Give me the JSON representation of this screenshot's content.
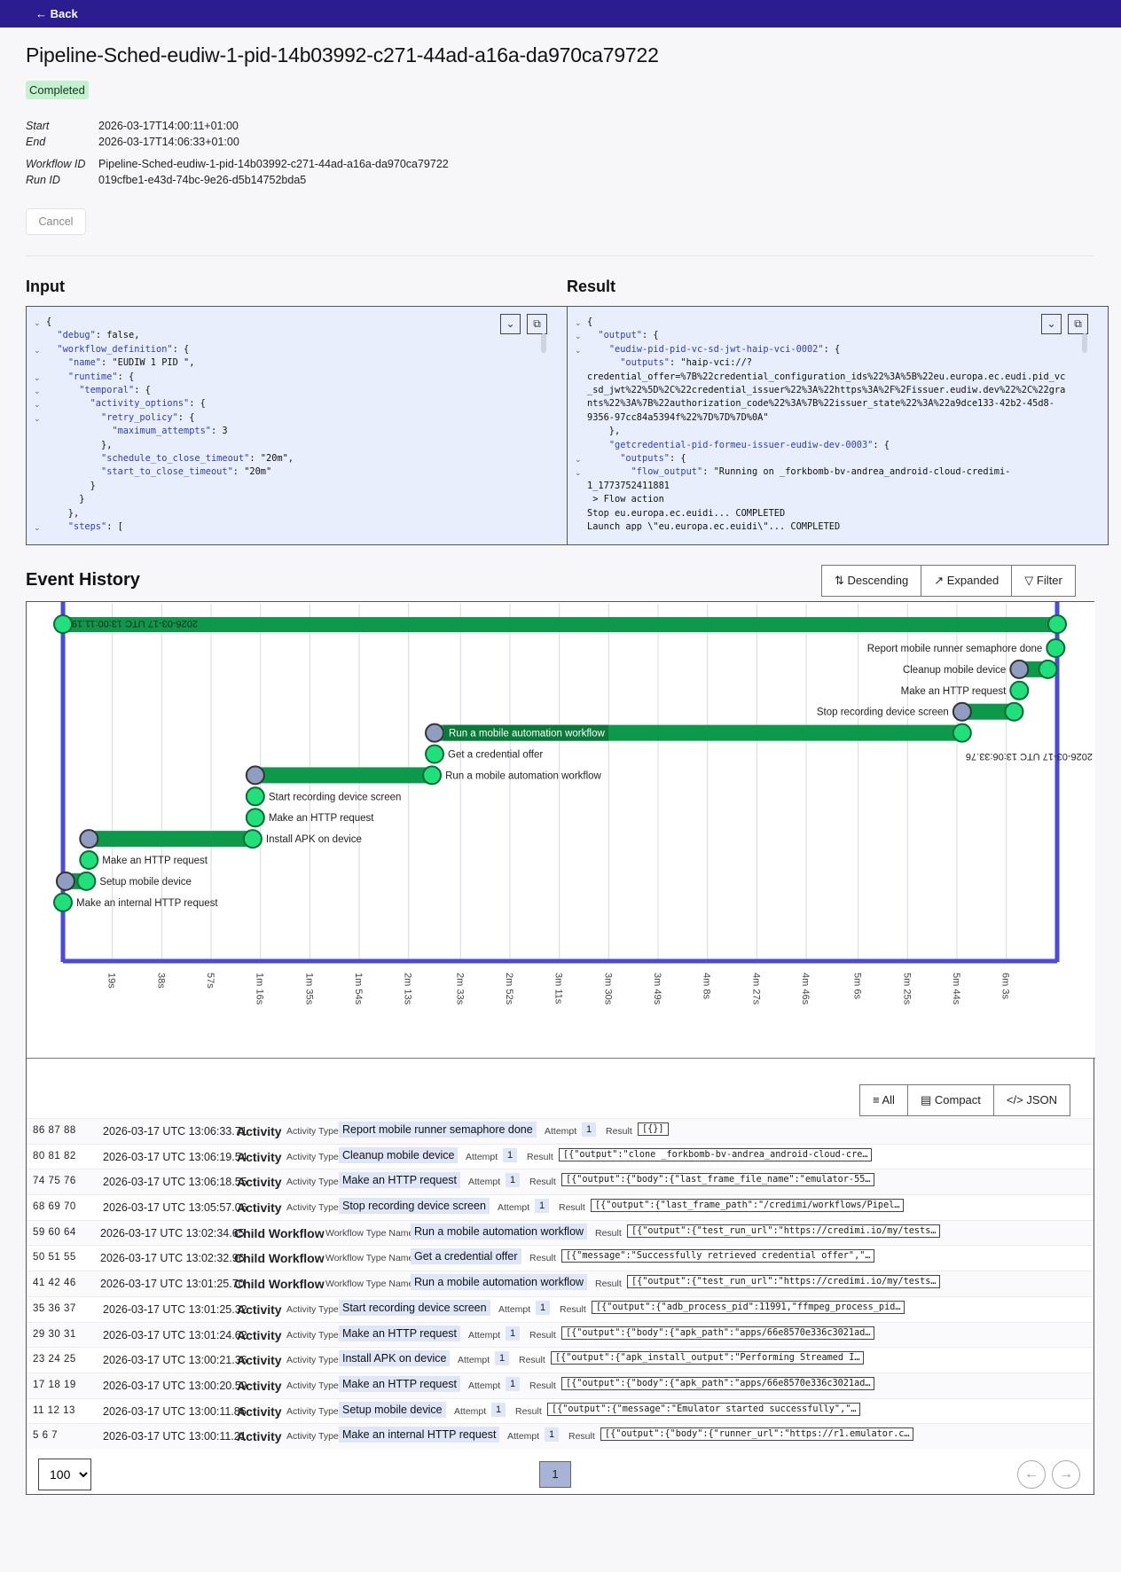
{
  "topbar": {
    "back_label": "Back"
  },
  "page": {
    "title": "Pipeline-Sched-eudiw-1-pid-14b03992-c271-44ad-a16a-da970ca79722",
    "status": "Completed",
    "start_label": "Start",
    "start_value": "2026-03-17T14:00:11+01:00",
    "end_label": "End",
    "end_value": "2026-03-17T14:06:33+01:00",
    "workflow_id_label": "Workflow ID",
    "workflow_id_value": "Pipeline-Sched-eudiw-1-pid-14b03992-c271-44ad-a16a-da970ca79722",
    "run_id_label": "Run ID",
    "run_id_value": "019cfbe1-e43d-74bc-9e26-d5b14752bda5",
    "cancel_label": "Cancel"
  },
  "input": {
    "heading": "Input",
    "lines": [
      "{",
      "  \"debug\": false,",
      "  \"workflow_definition\": {",
      "    \"name\": \"EUDIW 1 PID \",",
      "    \"runtime\": {",
      "      \"temporal\": {",
      "        \"activity_options\": {",
      "          \"retry_policy\": {",
      "            \"maximum_attempts\": 3",
      "          },",
      "          \"schedule_to_close_timeout\": \"20m\",",
      "          \"start_to_close_timeout\": \"20m\"",
      "        }",
      "      }",
      "    },",
      "    \"steps\": ["
    ]
  },
  "result": {
    "heading": "Result",
    "lines": [
      "{",
      "  \"output\": {",
      "    \"eudiw-pid-pid-vc-sd-jwt-haip-vci-0002\": {",
      "      \"outputs\": \"haip-vci://?",
      "credential_offer=%7B%22credential_configuration_ids%22%3A%5B%22eu.europa.ec.eudi.pid_vc",
      "_sd_jwt%22%5D%2C%22credential_issuer%22%3A%22https%3A%2F%2Fissuer.eudiw.dev%22%2C%22gra",
      "nts%22%3A%7B%22authorization_code%22%3A%7B%22issuer_state%22%3A%22a9dce133-42b2-45d8-",
      "9356-97cc84a5394f%22%7D%7D%7D%0A\"",
      "    },",
      "    \"getcredential-pid-formeu-issuer-eudiw-dev-0003\": {",
      "      \"outputs\": {",
      "        \"flow_output\": \"Running on _forkbomb-bv-andrea_android-cloud-credimi-",
      "1_1773752411881",
      " > Flow action",
      "Stop eu.europa.ec.euidi... COMPLETED",
      "Launch app \\\"eu.europa.ec.euidi\\\"... COMPLETED"
    ]
  },
  "event_history": {
    "heading": "Event History",
    "sort_label": "Descending",
    "expand_label": "Expanded",
    "filter_label": "Filter",
    "view_all": "All",
    "view_compact": "Compact",
    "view_json": "JSON"
  },
  "timeline": {
    "axis_ticks": [
      "19s",
      "38s",
      "57s",
      "1m 16s",
      "1m 35s",
      "1m 54s",
      "2m 13s",
      "2m 33s",
      "2m 52s",
      "3m 11s",
      "3m 30s",
      "3m 49s",
      "4m 8s",
      "4m 27s",
      "4m 46s",
      "5m 6s",
      "5m 25s",
      "5m 44s",
      "6m 3s"
    ],
    "start_stamp": "2026-03-17 UTC 13:00:11.19",
    "end_stamp": "2026-03-17 UTC 13:06:33.76",
    "bars": [
      {
        "label": "Report mobile runner semaphore done",
        "start_s": 382,
        "end_s": 382,
        "kind": "activity"
      },
      {
        "label": "Cleanup mobile device",
        "start_s": 368,
        "end_s": 379,
        "kind": "activity"
      },
      {
        "label": "Make an HTTP request",
        "start_s": 368,
        "end_s": 368,
        "kind": "activity"
      },
      {
        "label": "Stop recording device screen",
        "start_s": 346,
        "end_s": 366,
        "kind": "activity"
      },
      {
        "label": "Run a mobile automation workflow",
        "start_s": 143,
        "end_s": 346,
        "kind": "child"
      },
      {
        "label": "Get a credential offer",
        "start_s": 142,
        "end_s": 143,
        "kind": "child"
      },
      {
        "label": "Run a mobile automation workflow",
        "start_s": 74,
        "end_s": 142,
        "kind": "child"
      },
      {
        "label": "Start recording device screen",
        "start_s": 74,
        "end_s": 74,
        "kind": "activity"
      },
      {
        "label": "Make an HTTP request",
        "start_s": 74,
        "end_s": 74,
        "kind": "activity"
      },
      {
        "label": "Install APK on device",
        "start_s": 10,
        "end_s": 73,
        "kind": "activity"
      },
      {
        "label": "Make an HTTP request",
        "start_s": 10,
        "end_s": 10,
        "kind": "activity"
      },
      {
        "label": "Setup mobile device",
        "start_s": 1,
        "end_s": 9,
        "kind": "activity"
      },
      {
        "label": "Make an internal HTTP request",
        "start_s": 0,
        "end_s": 0,
        "kind": "activity"
      }
    ]
  },
  "events": [
    {
      "ids": "86 87 88",
      "time": "2026-03-17 UTC 13:06:33.71",
      "kind": "Activity",
      "type_label": "Activity Type",
      "type": "Report mobile runner semaphore done",
      "attempt_label": "Attempt",
      "attempt": "1",
      "result_label": "Result",
      "result": "[{}]"
    },
    {
      "ids": "80 81 82",
      "time": "2026-03-17 UTC 13:06:19.54",
      "kind": "Activity",
      "type_label": "Activity Type",
      "type": "Cleanup mobile device",
      "attempt_label": "Attempt",
      "attempt": "1",
      "result_label": "Result",
      "result": "[{\"output\":\"clone _forkbomb-bv-andrea_android-cloud-cre…"
    },
    {
      "ids": "74 75 76",
      "time": "2026-03-17 UTC 13:06:18.55",
      "kind": "Activity",
      "type_label": "Activity Type",
      "type": "Make an HTTP request",
      "attempt_label": "Attempt",
      "attempt": "1",
      "result_label": "Result",
      "result": "[{\"output\":{\"body\":{\"last_frame_file_name\":\"emulator-55…"
    },
    {
      "ids": "68 69 70",
      "time": "2026-03-17 UTC 13:05:57.06",
      "kind": "Activity",
      "type_label": "Activity Type",
      "type": "Stop recording device screen",
      "attempt_label": "Attempt",
      "attempt": "1",
      "result_label": "Result",
      "result": "[{\"output\":{\"last_frame_path\":\"/credimi/workflows/Pipel…"
    },
    {
      "ids": "59 60 64",
      "time": "2026-03-17 UTC 13:02:34.65",
      "kind": "Child Workflow",
      "type_label": "Workflow Type Name",
      "type": "Run a mobile automation workflow",
      "attempt_label": "",
      "attempt": "",
      "result_label": "Result",
      "result": "[{\"output\":{\"test_run_url\":\"https://credimi.io/my/tests…"
    },
    {
      "ids": "50 51 55",
      "time": "2026-03-17 UTC 13:02:32.96",
      "kind": "Child Workflow",
      "type_label": "Workflow Type Name",
      "type": "Get a credential offer",
      "attempt_label": "",
      "attempt": "",
      "result_label": "Result",
      "result": "[{\"message\":\"Successfully retrieved credential offer\",\"…"
    },
    {
      "ids": "41 42 46",
      "time": "2026-03-17 UTC 13:01:25.70",
      "kind": "Child Workflow",
      "type_label": "Workflow Type Name",
      "type": "Run a mobile automation workflow",
      "attempt_label": "",
      "attempt": "",
      "result_label": "Result",
      "result": "[{\"output\":{\"test_run_url\":\"https://credimi.io/my/tests…"
    },
    {
      "ids": "35 36 37",
      "time": "2026-03-17 UTC 13:01:25.32",
      "kind": "Activity",
      "type_label": "Activity Type",
      "type": "Start recording device screen",
      "attempt_label": "Attempt",
      "attempt": "1",
      "result_label": "Result",
      "result": "[{\"output\":{\"adb_process_pid\":11991,\"ffmpeg_process_pid…"
    },
    {
      "ids": "29 30 31",
      "time": "2026-03-17 UTC 13:01:24.62",
      "kind": "Activity",
      "type_label": "Activity Type",
      "type": "Make an HTTP request",
      "attempt_label": "Attempt",
      "attempt": "1",
      "result_label": "Result",
      "result": "[{\"output\":{\"body\":{\"apk_path\":\"apps/66e8570e336c3021ad…"
    },
    {
      "ids": "23 24 25",
      "time": "2026-03-17 UTC 13:00:21.36",
      "kind": "Activity",
      "type_label": "Activity Type",
      "type": "Install APK on device",
      "attempt_label": "Attempt",
      "attempt": "1",
      "result_label": "Result",
      "result": "[{\"output\":{\"apk_install_output\":\"Performing Streamed I…"
    },
    {
      "ids": "17 18 19",
      "time": "2026-03-17 UTC 13:00:20.59",
      "kind": "Activity",
      "type_label": "Activity Type",
      "type": "Make an HTTP request",
      "attempt_label": "Attempt",
      "attempt": "1",
      "result_label": "Result",
      "result": "[{\"output\":{\"body\":{\"apk_path\":\"apps/66e8570e336c3021ad…"
    },
    {
      "ids": "11 12 13",
      "time": "2026-03-17 UTC 13:00:11.86",
      "kind": "Activity",
      "type_label": "Activity Type",
      "type": "Setup mobile device",
      "attempt_label": "Attempt",
      "attempt": "1",
      "result_label": "Result",
      "result": "[{\"output\":{\"message\":\"Emulator started successfully\",\"…"
    },
    {
      "ids": "5 6 7",
      "time": "2026-03-17 UTC 13:00:11.21",
      "kind": "Activity",
      "type_label": "Activity Type",
      "type": "Make an internal HTTP request",
      "attempt_label": "Attempt",
      "attempt": "1",
      "result_label": "Result",
      "result": "[{\"output\":{\"body\":{\"runner_url\":\"https://r1.emulator.c…"
    }
  ],
  "pagination": {
    "page_size": "100",
    "current_page": "1"
  },
  "colors": {
    "topbar": "#2b1d8f",
    "bar_green": "#0c9a4a",
    "node_green": "#1fe07a",
    "frame_blue": "#4a4adf",
    "code_bg": "#e8eefb"
  },
  "icons": [
    "arrow-left-icon",
    "chevron-down-icon",
    "copy-icon",
    "sort-desc-icon",
    "expand-icon",
    "filter-icon",
    "list-icon",
    "compact-icon",
    "code-icon",
    "chevron-left-icon",
    "chevron-right-icon",
    "activity-node-icon",
    "child-workflow-icon"
  ]
}
